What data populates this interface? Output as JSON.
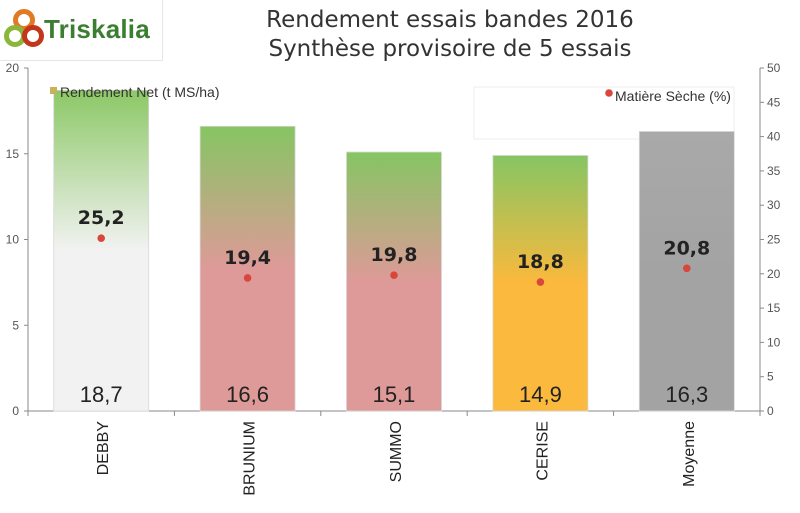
{
  "logo": {
    "text": "Triskalia"
  },
  "chart_data": {
    "type": "bar",
    "title": "Rendement essais bandes 2016",
    "subtitle": "Synthèse provisoire de 5 essais",
    "categories": [
      "DEBBY",
      "BRUNIUM",
      "SUMMO",
      "CERISE",
      "Moyenne"
    ],
    "bar_series": {
      "name": "Rendement Net (t MS/ha)",
      "values": [
        18.7,
        16.6,
        15.1,
        14.9,
        16.3
      ],
      "labels": [
        "18,7",
        "16,6",
        "15,1",
        "14,9",
        "16,3"
      ],
      "top_colors": [
        "#8cc866",
        "#86c563",
        "#86c563",
        "#86c563",
        "#a9a9a9"
      ],
      "bottom_colors": [
        "#f2f2f2",
        "#de9a98",
        "#de9a98",
        "#fbb93d",
        "#a3a3a3"
      ]
    },
    "point_series": {
      "name": "Matière Sèche (%)",
      "values": [
        25.2,
        19.4,
        19.8,
        18.8,
        20.8
      ],
      "labels": [
        "25,2",
        "19,4",
        "19,8",
        "18,8",
        "20,8"
      ],
      "color": "#d9463b"
    },
    "y_left": {
      "min": 0,
      "max": 20,
      "ticks": [
        0,
        5,
        10,
        15,
        20
      ]
    },
    "y_right": {
      "min": 0,
      "max": 50,
      "ticks": [
        0,
        5,
        10,
        15,
        20,
        25,
        30,
        35,
        40,
        45,
        50
      ]
    },
    "legend_bar_color": "#c9b35a",
    "grid": false
  }
}
